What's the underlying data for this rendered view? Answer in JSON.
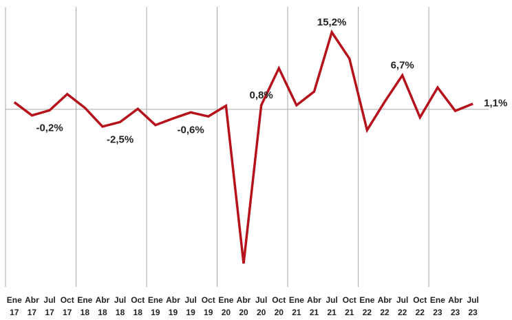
{
  "chart_data": {
    "type": "line",
    "categories": [
      [
        "Ene",
        "17"
      ],
      [
        "Abr",
        "17"
      ],
      [
        "Jul",
        "17"
      ],
      [
        "Oct",
        "17"
      ],
      [
        "Ene",
        "18"
      ],
      [
        "Abr",
        "18"
      ],
      [
        "Jul",
        "18"
      ],
      [
        "Oct",
        "18"
      ],
      [
        "Ene",
        "19"
      ],
      [
        "Abr",
        "19"
      ],
      [
        "Jul",
        "19"
      ],
      [
        "Oct",
        "19"
      ],
      [
        "Ene",
        "20"
      ],
      [
        "Abr",
        "20"
      ],
      [
        "Jul",
        "20"
      ],
      [
        "Oct",
        "20"
      ],
      [
        "Ene",
        "21"
      ],
      [
        "Abr",
        "21"
      ],
      [
        "Jul",
        "21"
      ],
      [
        "Oct",
        "21"
      ],
      [
        "Ene",
        "22"
      ],
      [
        "Abr",
        "22"
      ],
      [
        "Jul",
        "22"
      ],
      [
        "Oct",
        "22"
      ],
      [
        "Ene",
        "23"
      ],
      [
        "Abr",
        "23"
      ],
      [
        "Jul",
        "23"
      ]
    ],
    "series": [
      {
        "color": "#b5121b",
        "values": [
          1.4,
          -1.2,
          -0.2,
          3.0,
          0.3,
          -3.4,
          -2.5,
          0.1,
          -3.1,
          -1.8,
          -0.6,
          -1.4,
          0.7,
          -30.4,
          0.8,
          8.1,
          0.8,
          3.5,
          15.2,
          10.0,
          -4.1,
          1.5,
          6.7,
          -1.6,
          4.3,
          -0.3,
          1.1
        ],
        "value_labels": [
          null,
          null,
          "-0,2%",
          null,
          null,
          null,
          "-2,5%",
          null,
          null,
          null,
          "-0,6%",
          null,
          null,
          null,
          "0,8%",
          null,
          null,
          null,
          "15,2%",
          null,
          null,
          null,
          "6,7%",
          null,
          null,
          null,
          "1,1%"
        ]
      }
    ],
    "ylim": [
      -33.4,
      20.2
    ],
    "yticks": [
      0
    ]
  }
}
